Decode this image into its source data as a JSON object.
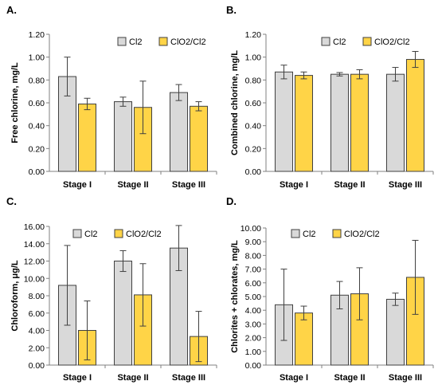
{
  "legend_swatches": {
    "cl2": "#d9d9d9",
    "clo2": "#ffd447"
  },
  "chart_data": [
    {
      "panel_label": "A.",
      "type": "bar",
      "ylabel": "Free chlorine, mg/L",
      "ylim": [
        0,
        1.2
      ],
      "ytick_step": 0.2,
      "ytick_decimals": 2,
      "categories": [
        "Stage I",
        "Stage II",
        "Stage III"
      ],
      "series": [
        {
          "name": "Cl2",
          "color": "#d9d9d9",
          "values": [
            0.83,
            0.61,
            0.69
          ],
          "err": [
            0.17,
            0.04,
            0.07
          ]
        },
        {
          "name": "ClO2/Cl2",
          "color": "#ffd447",
          "values": [
            0.59,
            0.56,
            0.57
          ],
          "err": [
            0.05,
            0.23,
            0.04
          ]
        }
      ],
      "legend_position": "top",
      "grid": false
    },
    {
      "panel_label": "B.",
      "type": "bar",
      "ylabel": "Combined chlorine, mg/L",
      "ylim": [
        0,
        1.2
      ],
      "ytick_step": 0.2,
      "ytick_decimals": 2,
      "categories": [
        "Stage I",
        "Stage II",
        "Stage III"
      ],
      "series": [
        {
          "name": "Cl2",
          "color": "#d9d9d9",
          "values": [
            0.87,
            0.85,
            0.85
          ],
          "err": [
            0.06,
            0.015,
            0.06
          ]
        },
        {
          "name": "ClO2/Cl2",
          "color": "#ffd447",
          "values": [
            0.84,
            0.85,
            0.98
          ],
          "err": [
            0.03,
            0.04,
            0.07
          ]
        }
      ],
      "legend_position": "top",
      "grid": false
    },
    {
      "panel_label": "C.",
      "type": "bar",
      "ylabel": "Chloroform, μg/L",
      "ylim": [
        0,
        16
      ],
      "ytick_step": 2,
      "ytick_decimals": 2,
      "categories": [
        "Stage I",
        "Stage II",
        "Stage III"
      ],
      "series": [
        {
          "name": "Cl2",
          "color": "#d9d9d9",
          "values": [
            9.2,
            12.0,
            13.5
          ],
          "err": [
            4.6,
            1.2,
            2.6
          ]
        },
        {
          "name": "ClO2/Cl2",
          "color": "#ffd447",
          "values": [
            4.0,
            8.1,
            3.3
          ],
          "err": [
            3.4,
            3.6,
            2.9
          ]
        }
      ],
      "legend_position": "top",
      "grid": false
    },
    {
      "panel_label": "D.",
      "type": "bar",
      "ylabel": "Chlorites + chlorates, mg/L",
      "ylim": [
        0,
        10
      ],
      "ytick_step": 1,
      "ytick_decimals": 2,
      "categories": [
        "Stage I",
        "Stage II",
        "Stage III"
      ],
      "series": [
        {
          "name": "Cl2",
          "color": "#d9d9d9",
          "values": [
            4.4,
            5.1,
            4.8
          ],
          "err": [
            2.6,
            1.0,
            0.45
          ]
        },
        {
          "name": "ClO2/Cl2",
          "color": "#ffd447",
          "values": [
            3.8,
            5.2,
            6.4
          ],
          "err": [
            0.5,
            1.9,
            2.7
          ]
        }
      ],
      "legend_position": "top",
      "grid": false
    }
  ]
}
